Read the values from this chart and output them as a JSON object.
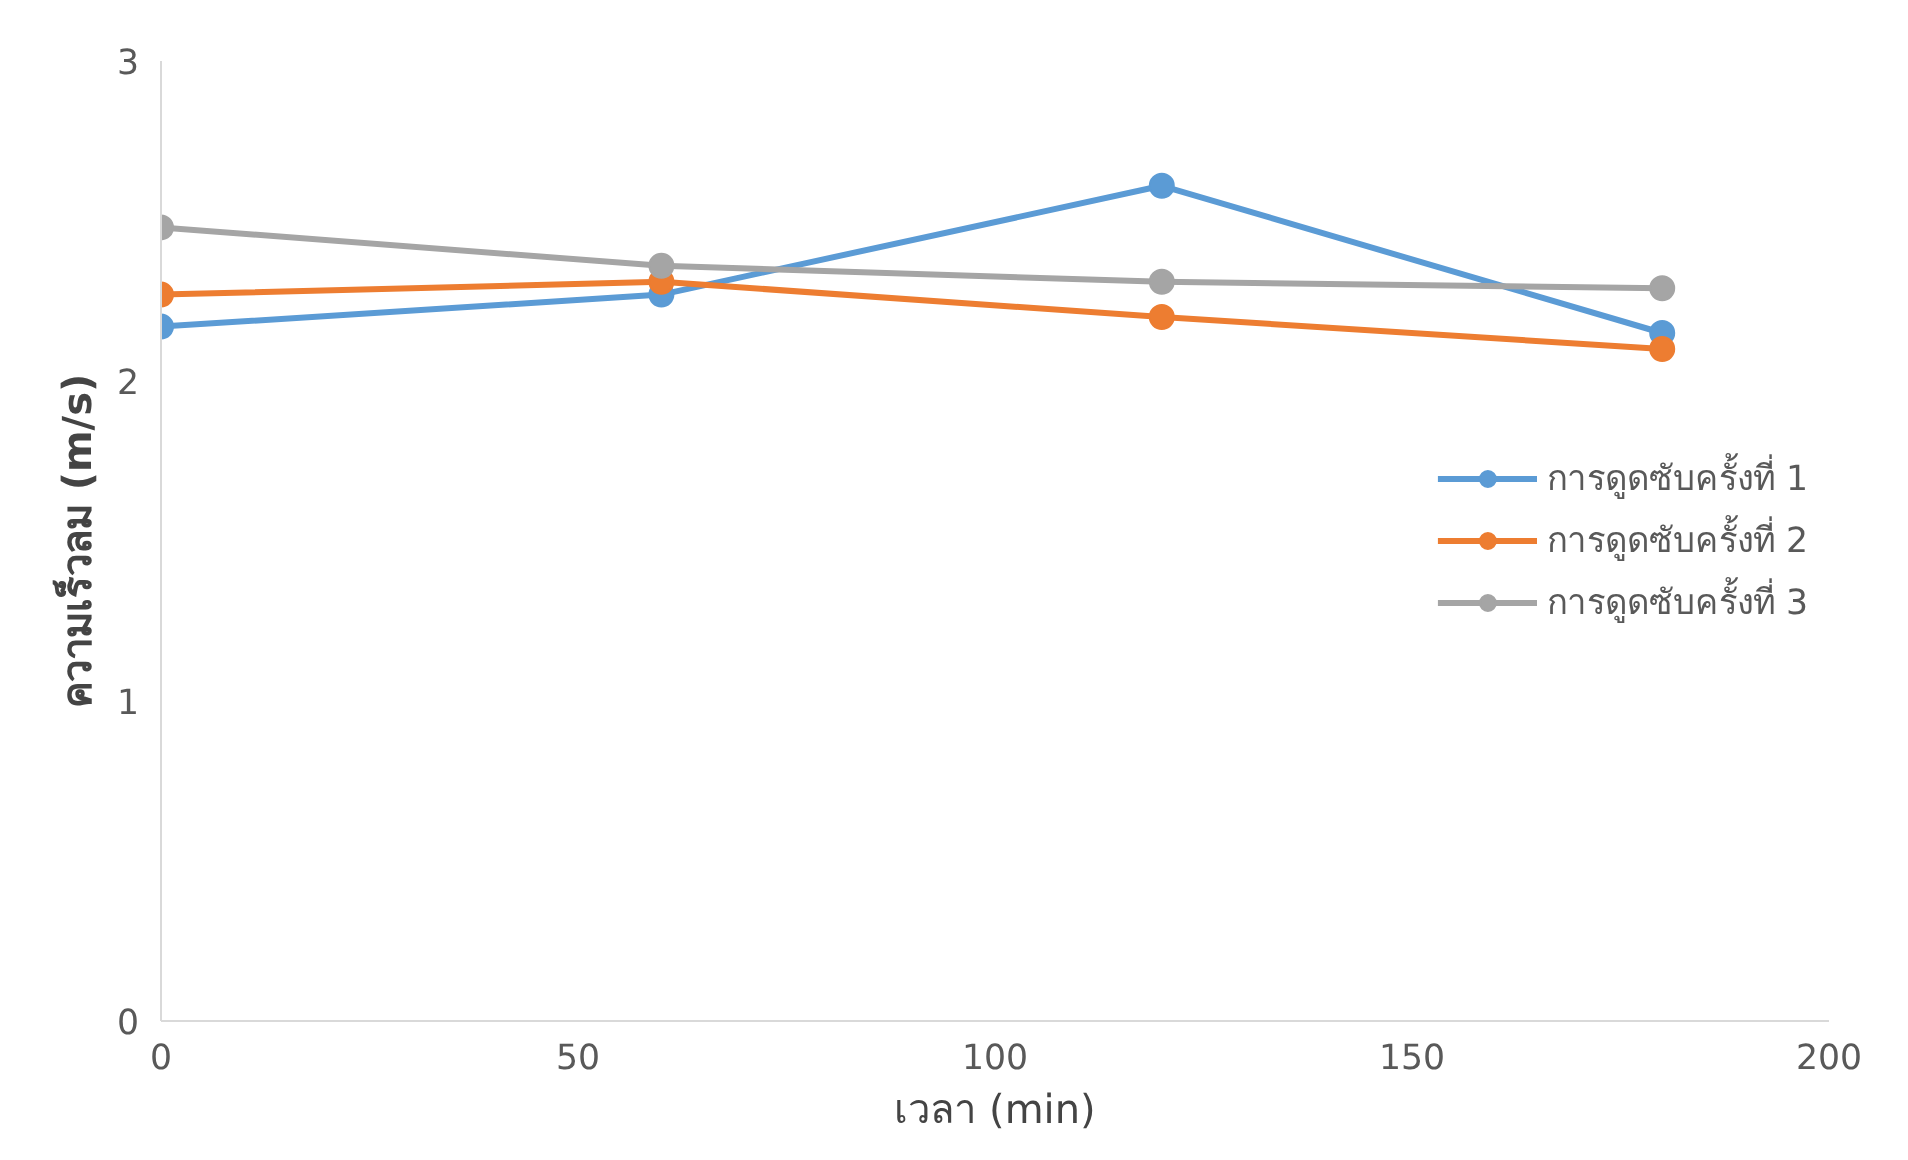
{
  "chart_data": {
    "type": "line",
    "xlabel": "เวลา (min)",
    "ylabel": "ความเร็วลม (m/s)",
    "x": [
      0,
      60,
      120,
      180
    ],
    "series": [
      {
        "name": "การดูดซับครั้งที่ 1",
        "color": "#5b9bd5",
        "values": [
          2.17,
          2.27,
          2.61,
          2.15
        ]
      },
      {
        "name": "การดูดซับครั้งที่ 2",
        "color": "#ed7d31",
        "values": [
          2.27,
          2.31,
          2.2,
          2.1
        ]
      },
      {
        "name": "การดูดซับครั้งที่ 3",
        "color": "#a5a5a5",
        "values": [
          2.48,
          2.36,
          2.31,
          2.29
        ]
      }
    ],
    "xlim": [
      0,
      200
    ],
    "ylim": [
      0,
      3
    ],
    "xticks": [
      0,
      50,
      100,
      150,
      200
    ],
    "yticks": [
      0,
      1,
      2,
      3
    ],
    "grid": false,
    "legend": "right",
    "marker": "circle",
    "line_style": "solid"
  }
}
